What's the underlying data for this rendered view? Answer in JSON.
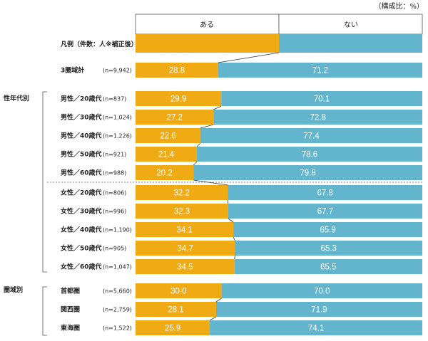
{
  "chart_data": {
    "type": "bar",
    "stacked": true,
    "orientation": "horizontal",
    "unit_note": "（構成比：%）",
    "legend": {
      "row_label": "凡例（件数：人※補正後）",
      "series_labels": [
        "ある",
        "ない"
      ]
    },
    "colors": {
      "aru": "#F0AA14",
      "nai": "#62B5CC"
    },
    "categories": [
      {
        "group": "",
        "label": "3圏域計",
        "n": "(n=9,942)",
        "aru": 28.8,
        "nai": 71.2
      },
      {
        "group": "性年代別",
        "label": "男性／20歳代",
        "n": "(n=837)",
        "aru": 29.9,
        "nai": 70.1
      },
      {
        "group": "",
        "label": "男性／30歳代",
        "n": "(n=1,024)",
        "aru": 27.2,
        "nai": 72.8
      },
      {
        "group": "",
        "label": "男性／40歳代",
        "n": "(n=1,226)",
        "aru": 22.6,
        "nai": 77.4
      },
      {
        "group": "",
        "label": "男性／50歳代",
        "n": "(n=921)",
        "aru": 21.4,
        "nai": 78.6
      },
      {
        "group": "",
        "label": "男性／60歳代",
        "n": "(n=988)",
        "aru": 20.2,
        "nai": 79.8
      },
      {
        "group": "",
        "label": "女性／20歳代",
        "n": "(n=806)",
        "aru": 32.2,
        "nai": 67.8
      },
      {
        "group": "",
        "label": "女性／30歳代",
        "n": "(n=996)",
        "aru": 32.3,
        "nai": 67.7
      },
      {
        "group": "",
        "label": "女性／40歳代",
        "n": "(n=1,190)",
        "aru": 34.1,
        "nai": 65.9
      },
      {
        "group": "",
        "label": "女性／50歳代",
        "n": "(n=905)",
        "aru": 34.7,
        "nai": 65.3
      },
      {
        "group": "",
        "label": "女性／60歳代",
        "n": "(n=1,047)",
        "aru": 34.5,
        "nai": 65.5
      },
      {
        "group": "圏域別",
        "label": "首都圏",
        "n": "(n=5,660)",
        "aru": 30.0,
        "nai": 70.0
      },
      {
        "group": "",
        "label": "関西圏",
        "n": "(n=2,759)",
        "aru": 28.1,
        "nai": 71.9
      },
      {
        "group": "",
        "label": "東海圏",
        "n": "(n=1,522)",
        "aru": 25.9,
        "nai": 74.1
      }
    ],
    "xlim": [
      0,
      100
    ]
  }
}
